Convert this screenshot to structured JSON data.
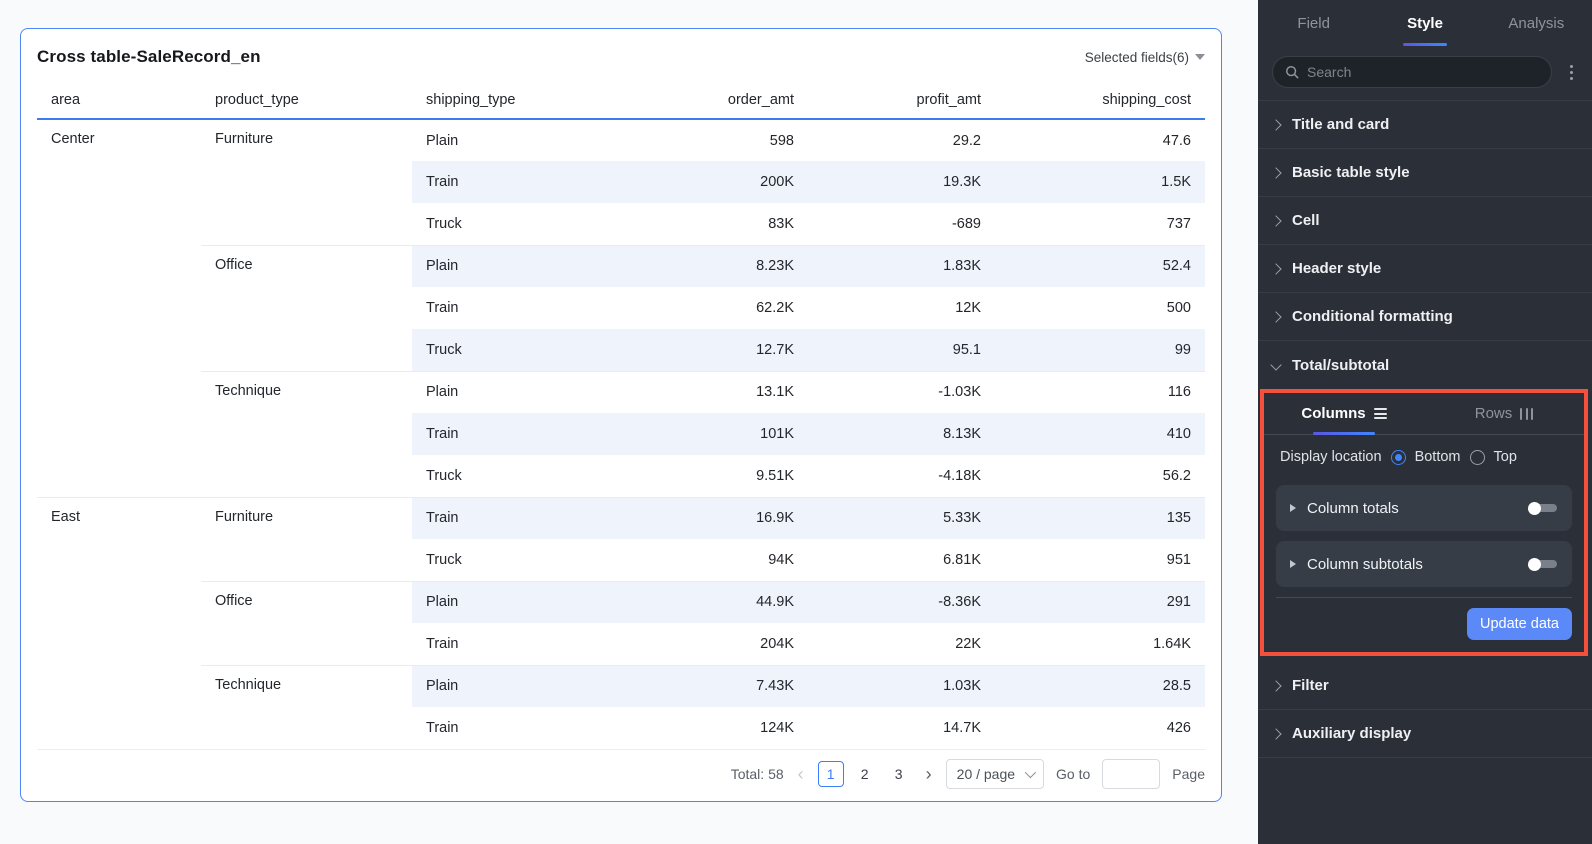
{
  "colors": {
    "accent_blue": "#3d7eff",
    "card_border_blue": "#4f86f7",
    "header_underline_blue": "#3e7bf0",
    "stripe_blue": "#eff4fc",
    "panel_bg": "#2b3038",
    "annotation_red": "#f5503e",
    "update_button_blue": "#5b8af8"
  },
  "icons": {
    "caret_down": "filled-triangle-down",
    "search": "magnifier",
    "more": "kebab-vertical-dots",
    "section_collapsed": "chevron-right",
    "section_expanded": "chevron-down",
    "columns_tab": "horizontal-lines",
    "rows_tab": "vertical-bars",
    "expand_row": "triangle-right",
    "prev": "‹",
    "next": "›",
    "select_chevron": "chevron-down"
  },
  "table_card": {
    "title": "Cross table-SaleRecord_en",
    "selected_fields_label": "Selected fields(6)",
    "columns": [
      {
        "key": "area",
        "label": "area",
        "align": "left"
      },
      {
        "key": "product_type",
        "label": "product_type",
        "align": "left"
      },
      {
        "key": "shipping_type",
        "label": "shipping_type",
        "align": "left"
      },
      {
        "key": "order_amt",
        "label": "order_amt",
        "align": "right"
      },
      {
        "key": "profit_amt",
        "label": "profit_amt",
        "align": "right"
      },
      {
        "key": "shipping_cost",
        "label": "shipping_cost",
        "align": "right"
      }
    ],
    "rows": [
      {
        "area": "Center",
        "product_type": "Furniture",
        "shipping_type": "Plain",
        "order_amt": "598",
        "profit_amt": "29.2",
        "shipping_cost": "47.6"
      },
      {
        "area": "",
        "product_type": "",
        "shipping_type": "Train",
        "order_amt": "200K",
        "profit_amt": "19.3K",
        "shipping_cost": "1.5K"
      },
      {
        "area": "",
        "product_type": "",
        "shipping_type": "Truck",
        "order_amt": "83K",
        "profit_amt": "-689",
        "shipping_cost": "737"
      },
      {
        "area": "",
        "product_type": "Office",
        "shipping_type": "Plain",
        "order_amt": "8.23K",
        "profit_amt": "1.83K",
        "shipping_cost": "52.4"
      },
      {
        "area": "",
        "product_type": "",
        "shipping_type": "Train",
        "order_amt": "62.2K",
        "profit_amt": "12K",
        "shipping_cost": "500"
      },
      {
        "area": "",
        "product_type": "",
        "shipping_type": "Truck",
        "order_amt": "12.7K",
        "profit_amt": "95.1",
        "shipping_cost": "99"
      },
      {
        "area": "",
        "product_type": "Technique",
        "shipping_type": "Plain",
        "order_amt": "13.1K",
        "profit_amt": "-1.03K",
        "shipping_cost": "116"
      },
      {
        "area": "",
        "product_type": "",
        "shipping_type": "Train",
        "order_amt": "101K",
        "profit_amt": "8.13K",
        "shipping_cost": "410"
      },
      {
        "area": "",
        "product_type": "",
        "shipping_type": "Truck",
        "order_amt": "9.51K",
        "profit_amt": "-4.18K",
        "shipping_cost": "56.2"
      },
      {
        "area": "East",
        "product_type": "Furniture",
        "shipping_type": "Train",
        "order_amt": "16.9K",
        "profit_amt": "5.33K",
        "shipping_cost": "135"
      },
      {
        "area": "",
        "product_type": "",
        "shipping_type": "Truck",
        "order_amt": "94K",
        "profit_amt": "6.81K",
        "shipping_cost": "951"
      },
      {
        "area": "",
        "product_type": "Office",
        "shipping_type": "Plain",
        "order_amt": "44.9K",
        "profit_amt": "-8.36K",
        "shipping_cost": "291"
      },
      {
        "area": "",
        "product_type": "",
        "shipping_type": "Train",
        "order_amt": "204K",
        "profit_amt": "22K",
        "shipping_cost": "1.64K"
      },
      {
        "area": "",
        "product_type": "Technique",
        "shipping_type": "Plain",
        "order_amt": "7.43K",
        "profit_amt": "1.03K",
        "shipping_cost": "28.5"
      },
      {
        "area": "",
        "product_type": "",
        "shipping_type": "Train",
        "order_amt": "124K",
        "profit_amt": "14.7K",
        "shipping_cost": "426"
      }
    ],
    "pagination": {
      "total_label": "Total: 58",
      "pages": [
        "1",
        "2",
        "3"
      ],
      "current_page": "1",
      "page_size_label": "20 / page",
      "goto_label": "Go to",
      "goto_value": "",
      "page_suffix_label": "Page"
    }
  },
  "panel": {
    "tabs": [
      "Field",
      "Style",
      "Analysis"
    ],
    "active_tab": "Style",
    "search_placeholder": "Search",
    "sections_top": [
      "Title and card",
      "Basic table style",
      "Cell",
      "Header style",
      "Conditional formatting"
    ],
    "total_subtotal": {
      "label": "Total/subtotal",
      "columns_tab": "Columns",
      "rows_tab": "Rows",
      "active_tab": "Columns",
      "display_location_label": "Display location",
      "options": [
        "Bottom",
        "Top"
      ],
      "selected_option": "Bottom",
      "toggles": [
        {
          "label": "Column totals",
          "on": false
        },
        {
          "label": "Column subtotals",
          "on": false
        }
      ],
      "update_button_label": "Update data"
    },
    "sections_bottom": [
      "Filter",
      "Auxiliary display"
    ]
  }
}
